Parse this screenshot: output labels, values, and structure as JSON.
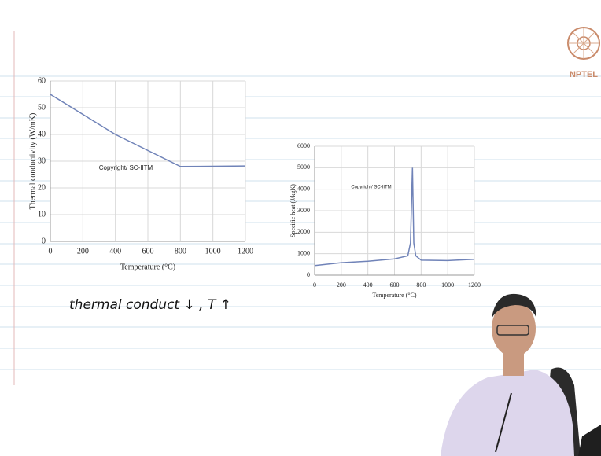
{
  "logo": "NPTEL",
  "note": "thermal conduct ↓ , T ↑",
  "chart_data": [
    {
      "type": "line",
      "annotation": "Copyright/ SC-IITM",
      "x_label": "Temperature (°C)",
      "y_label": "Thermal conductivity (W/mK)",
      "x": [
        0,
        400,
        800,
        1200
      ],
      "series": [
        {
          "color": "#7083b8",
          "values": [
            55,
            40,
            28,
            28.2
          ]
        }
      ],
      "xlim": [
        0,
        1200
      ],
      "ylim": [
        0,
        60
      ],
      "xticks": [
        0,
        200,
        400,
        600,
        800,
        1000,
        1200
      ],
      "yticks": [
        0,
        10,
        20,
        30,
        40,
        50,
        60
      ],
      "grid": true
    },
    {
      "type": "line",
      "annotation": "Copyright/ SC-IITM",
      "x_label": "Temperature (°C)",
      "y_label": "Specific heat (J/kgK)",
      "x": [
        0,
        200,
        400,
        600,
        700,
        720,
        735,
        745,
        760,
        800,
        1000,
        1200
      ],
      "series": [
        {
          "color": "#7083b8",
          "values": [
            450,
            580,
            650,
            760,
            900,
            1500,
            5000,
            1500,
            900,
            700,
            680,
            740
          ]
        }
      ],
      "xlim": [
        0,
        1200
      ],
      "ylim": [
        0,
        6000
      ],
      "xticks": [
        0,
        200,
        400,
        600,
        800,
        1000,
        1200
      ],
      "yticks": [
        0,
        1000,
        2000,
        3000,
        4000,
        5000,
        6000
      ],
      "grid": true
    }
  ]
}
